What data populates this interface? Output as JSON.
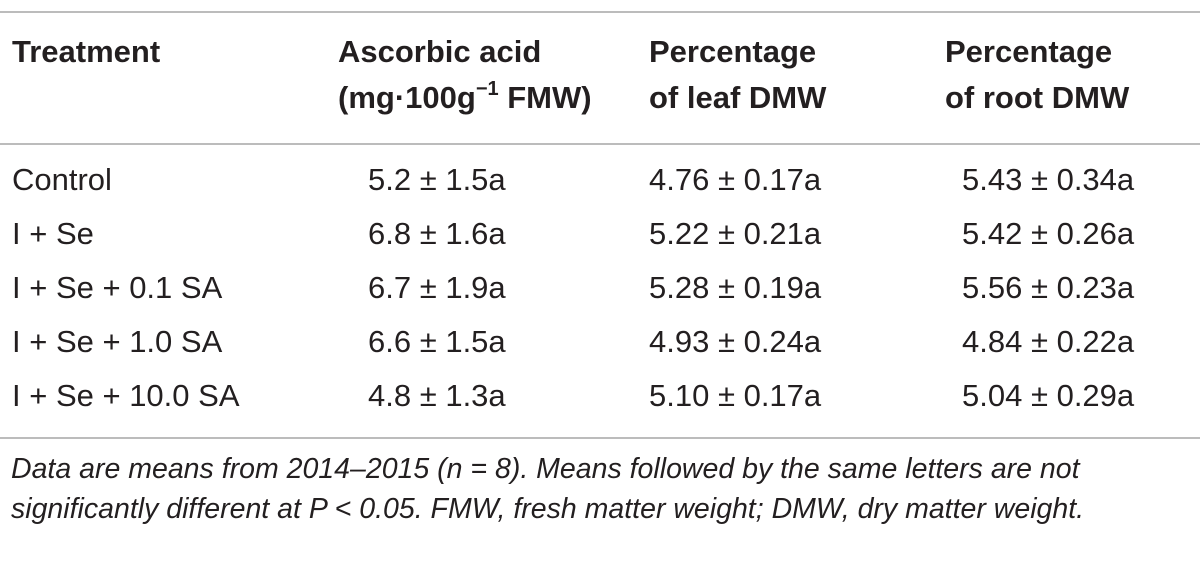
{
  "table": {
    "headers": {
      "treatment": "Treatment",
      "ascorbic_line1": "Ascorbic acid",
      "ascorbic_line2_pre": "(mg·100g",
      "ascorbic_line2_sup": "−1",
      "ascorbic_line2_post": " FMW)",
      "leaf_line1": "Percentage",
      "leaf_line2": "of leaf DMW",
      "root_line1": "Percentage",
      "root_line2": "of root DMW"
    },
    "rows": [
      {
        "treatment": "Control",
        "ascorbic": "5.2 ± 1.5a",
        "leaf": "4.76 ± 0.17a",
        "root": "5.43 ± 0.34a"
      },
      {
        "treatment": "I + Se",
        "ascorbic": "6.8 ± 1.6a",
        "leaf": "5.22 ± 0.21a",
        "root": "5.42 ± 0.26a"
      },
      {
        "treatment": "I + Se + 0.1 SA",
        "ascorbic": "6.7 ± 1.9a",
        "leaf": "5.28 ± 0.19a",
        "root": "5.56 ± 0.23a"
      },
      {
        "treatment": "I + Se + 1.0 SA",
        "ascorbic": "6.6 ± 1.5a",
        "leaf": "4.93 ± 0.24a",
        "root": "4.84 ± 0.22a"
      },
      {
        "treatment": "I + Se + 10.0 SA",
        "ascorbic": "4.8 ± 1.3a",
        "leaf": "5.10 ± 0.17a",
        "root": "5.04 ± 0.29a"
      }
    ],
    "footnote": "Data are means from 2014–2015 (n = 8). Means followed by the same letters are not significantly different at P < 0.05. FMW, fresh matter weight; DMW, dry matter weight."
  }
}
